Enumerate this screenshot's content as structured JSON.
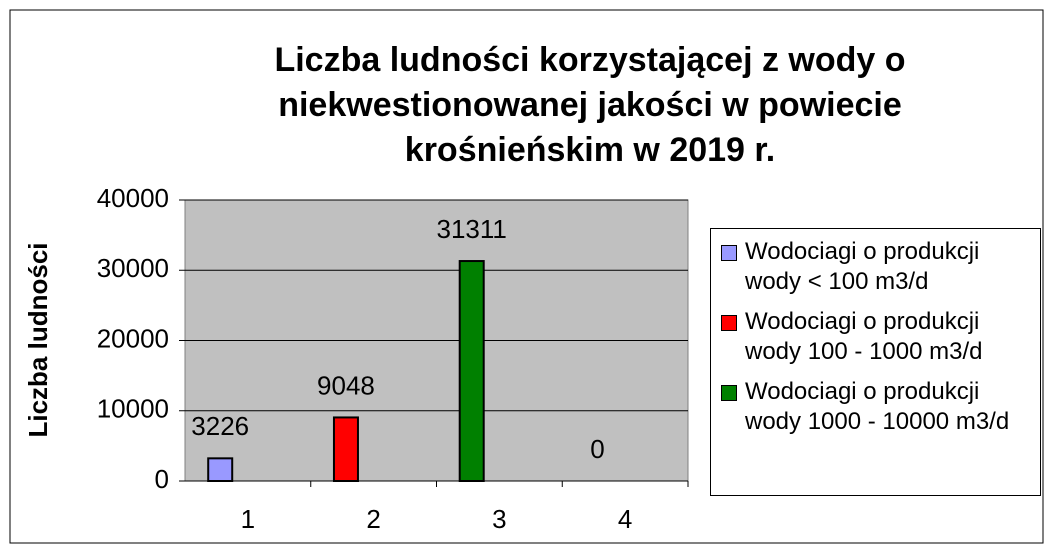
{
  "chart_data": {
    "type": "bar",
    "title": [
      "Liczba ludności korzystającej z wody o",
      "niekwestionowanej jakości w powiecie",
      "krośnieńskim w 2019 r."
    ],
    "y_label": "Liczba ludności",
    "categories": [
      "1",
      "2",
      "3",
      "4"
    ],
    "values": [
      3226,
      9048,
      31311,
      0
    ],
    "colors": [
      "#9999ff",
      "#ff0000",
      "#008000",
      "#000080"
    ],
    "ylim": [
      0,
      40000
    ],
    "yticks": [
      0,
      10000,
      20000,
      30000,
      40000
    ],
    "grid": true,
    "legend": [
      {
        "name": "Wodociagi o produkcji wody < 100 m3/d",
        "color": "#9999ff"
      },
      {
        "name": "Wodociagi o produkcji wody 100 - 1000 m3/d",
        "color": "#ff0000"
      },
      {
        "name": "Wodociagi o produkcji wody 1000 - 10000 m3/d",
        "color": "#008000"
      }
    ]
  }
}
